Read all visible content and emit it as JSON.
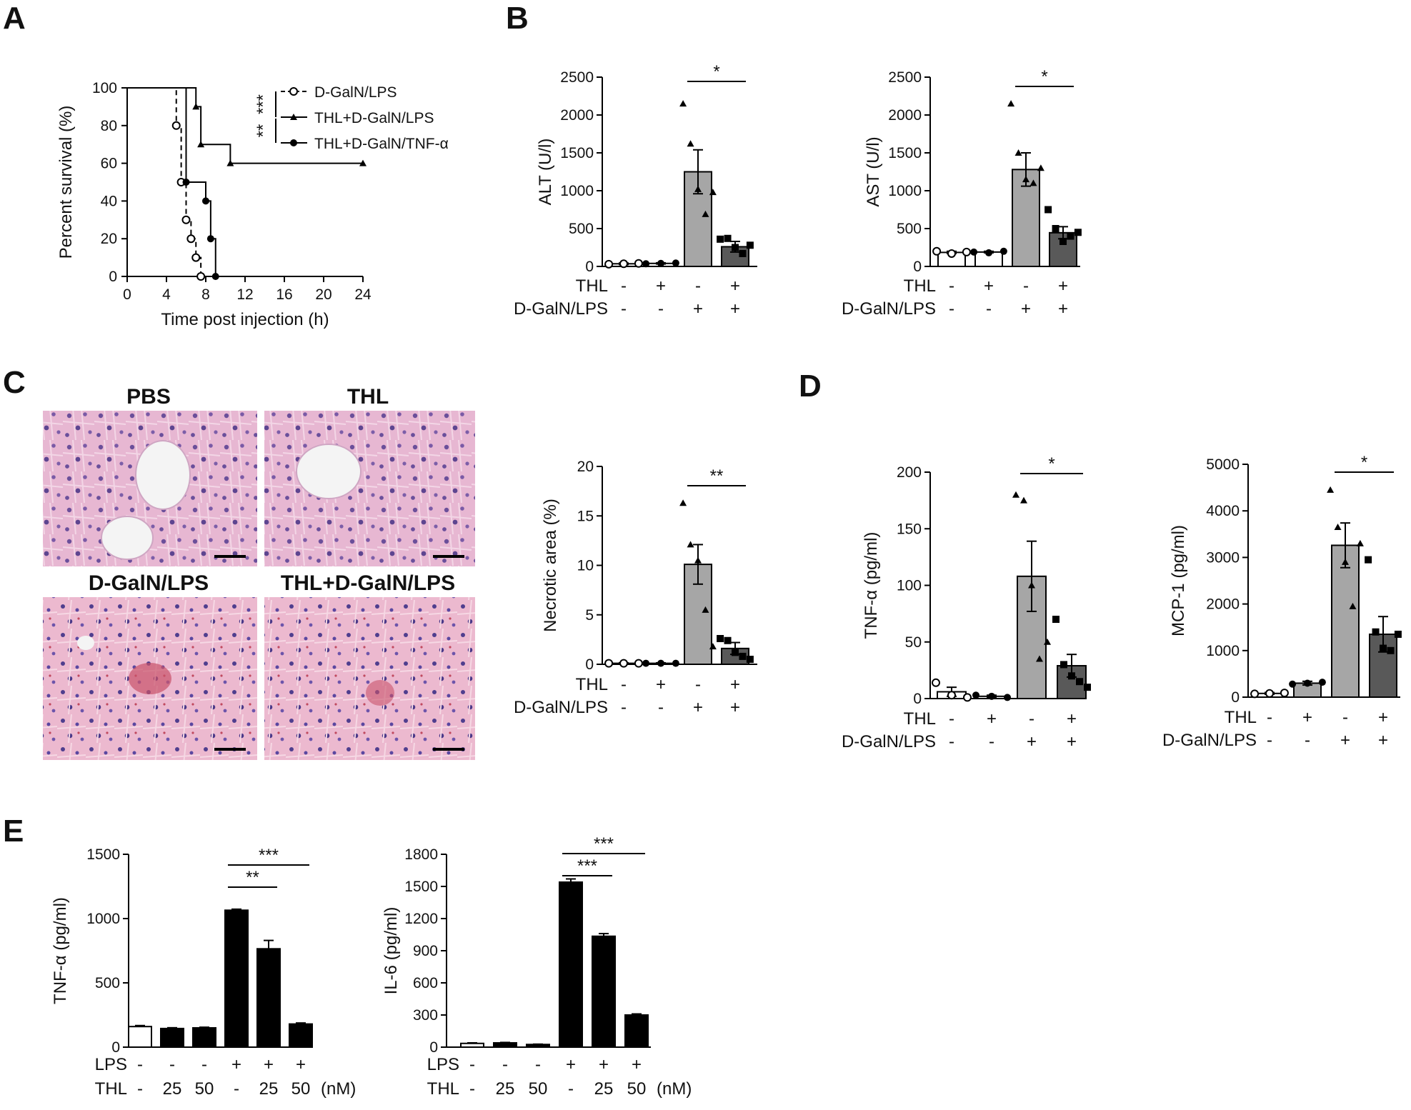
{
  "panels": {
    "A": {
      "letter": "A"
    },
    "B": {
      "letter": "B"
    },
    "C": {
      "letter": "C",
      "histo_titles": [
        "PBS",
        "THL",
        "D-GalN/LPS",
        "THL+D-GalN/LPS"
      ]
    },
    "D": {
      "letter": "D"
    },
    "E": {
      "letter": "E"
    }
  },
  "chart_data": [
    {
      "id": "A",
      "type": "line",
      "xlabel": "Time post injection (h)",
      "ylabel": "Percent survival (%)",
      "xlim": [
        0,
        24
      ],
      "ylim": [
        0,
        100
      ],
      "xticks": [
        0,
        4,
        8,
        12,
        16,
        20,
        24
      ],
      "yticks": [
        0,
        20,
        40,
        60,
        80,
        100
      ],
      "legend_position": "top-right",
      "series": [
        {
          "name": "D-GalN/LPS",
          "style": "dashed",
          "marker": "open-circle",
          "x": [
            0,
            5,
            5.5,
            6,
            6.5,
            7,
            7.5
          ],
          "y": [
            100,
            80,
            50,
            30,
            20,
            10,
            0
          ]
        },
        {
          "name": "THL+D-GalN/LPS",
          "style": "solid",
          "marker": "triangle",
          "x": [
            0,
            7,
            7.5,
            10.5,
            24
          ],
          "y": [
            100,
            90,
            70,
            60,
            60
          ]
        },
        {
          "name": "THL+D-GalN/TNF-α",
          "style": "solid",
          "marker": "filled-circle",
          "x": [
            0,
            6,
            8,
            8.5,
            9
          ],
          "y": [
            100,
            50,
            40,
            20,
            0
          ]
        }
      ],
      "significance": [
        "***",
        "**"
      ]
    },
    {
      "id": "B-ALT",
      "type": "bar",
      "ylabel": "ALT (U/l)",
      "ylim": [
        0,
        2500
      ],
      "yticks": [
        0,
        500,
        1000,
        1500,
        2000,
        2500
      ],
      "conditions": [
        {
          "label": "THL",
          "values": [
            "-",
            "+",
            "-",
            "+"
          ]
        },
        {
          "label": "D-GalN/LPS",
          "values": [
            "-",
            "-",
            "+",
            "+"
          ]
        }
      ],
      "bars": [
        {
          "mean": 35,
          "sem": 10,
          "color": "#ffffff",
          "marker": "open-circle",
          "points": [
            30,
            35,
            40
          ]
        },
        {
          "mean": 40,
          "sem": 8,
          "color": "#ffffff",
          "marker": "filled-circle",
          "points": [
            35,
            40,
            45
          ]
        },
        {
          "mean": 1250,
          "sem": 290,
          "color": "#a6a6a6",
          "marker": "triangle",
          "points": [
            2150,
            1620,
            1020,
            690,
            980
          ]
        },
        {
          "mean": 260,
          "sem": 70,
          "color": "#595959",
          "marker": "square",
          "points": [
            360,
            370,
            250,
            170,
            280
          ]
        }
      ],
      "significance": [
        {
          "from": 2,
          "to": 3,
          "label": "*"
        }
      ]
    },
    {
      "id": "B-AST",
      "type": "bar",
      "ylabel": "AST (U/l)",
      "ylim": [
        0,
        2500
      ],
      "yticks": [
        0,
        500,
        1000,
        1500,
        2000,
        2500
      ],
      "conditions": [
        {
          "label": "THL",
          "values": [
            "-",
            "+",
            "-",
            "+"
          ]
        },
        {
          "label": "D-GalN/LPS",
          "values": [
            "-",
            "-",
            "+",
            "+"
          ]
        }
      ],
      "bars": [
        {
          "mean": 185,
          "sem": 15,
          "color": "#ffffff",
          "marker": "open-circle",
          "points": [
            200,
            170,
            190
          ]
        },
        {
          "mean": 190,
          "sem": 10,
          "color": "#ffffff",
          "marker": "filled-circle",
          "points": [
            190,
            180,
            200
          ]
        },
        {
          "mean": 1280,
          "sem": 220,
          "color": "#a6a6a6",
          "marker": "triangle",
          "points": [
            2150,
            1500,
            1150,
            1100,
            1300
          ]
        },
        {
          "mean": 445,
          "sem": 80,
          "color": "#595959",
          "marker": "square",
          "points": [
            750,
            500,
            330,
            400,
            450
          ]
        }
      ],
      "significance": [
        {
          "from": 2,
          "to": 3,
          "label": "*"
        }
      ]
    },
    {
      "id": "C-necrosis",
      "type": "bar",
      "ylabel": "Necrotic area (%)",
      "ylim": [
        0,
        20
      ],
      "yticks": [
        0,
        5,
        10,
        15,
        20
      ],
      "conditions": [
        {
          "label": "THL",
          "values": [
            "-",
            "+",
            "-",
            "+"
          ]
        },
        {
          "label": "D-GalN/LPS",
          "values": [
            "-",
            "-",
            "+",
            "+"
          ]
        }
      ],
      "bars": [
        {
          "mean": 0.1,
          "sem": 0.05,
          "color": "#ffffff",
          "marker": "open-circle",
          "points": [
            0.1,
            0.1,
            0.1
          ]
        },
        {
          "mean": 0.1,
          "sem": 0.05,
          "color": "#ffffff",
          "marker": "filled-circle",
          "points": [
            0.1,
            0.1,
            0.1
          ]
        },
        {
          "mean": 10.1,
          "sem": 2.0,
          "color": "#a6a6a6",
          "marker": "triangle",
          "points": [
            16.3,
            12.1,
            10.5,
            5.5,
            1.8
          ]
        },
        {
          "mean": 1.6,
          "sem": 0.6,
          "color": "#595959",
          "marker": "square",
          "points": [
            2.6,
            2.4,
            1.2,
            0.8,
            0.5
          ]
        }
      ],
      "significance": [
        {
          "from": 2,
          "to": 3,
          "label": "**"
        }
      ]
    },
    {
      "id": "D-TNF",
      "type": "bar",
      "ylabel": "TNF-α (pg/ml)",
      "ylim": [
        0,
        200
      ],
      "yticks": [
        0,
        50,
        100,
        150,
        200
      ],
      "conditions": [
        {
          "label": "THL",
          "values": [
            "-",
            "+",
            "-",
            "+"
          ]
        },
        {
          "label": "D-GalN/LPS",
          "values": [
            "-",
            "-",
            "+",
            "+"
          ]
        }
      ],
      "bars": [
        {
          "mean": 6,
          "sem": 4,
          "color": "#ffffff",
          "marker": "open-circle",
          "points": [
            14,
            3,
            1
          ]
        },
        {
          "mean": 2,
          "sem": 1,
          "color": "#ffffff",
          "marker": "filled-circle",
          "points": [
            3,
            2,
            1
          ]
        },
        {
          "mean": 108,
          "sem": 31,
          "color": "#a6a6a6",
          "marker": "triangle",
          "points": [
            180,
            175,
            100,
            35,
            50
          ]
        },
        {
          "mean": 29,
          "sem": 10,
          "color": "#595959",
          "marker": "square",
          "points": [
            70,
            30,
            20,
            15,
            10
          ]
        }
      ],
      "significance": [
        {
          "from": 2,
          "to": 3,
          "label": "*"
        }
      ]
    },
    {
      "id": "D-MCP",
      "type": "bar",
      "ylabel": "MCP-1 (pg/ml)",
      "ylim": [
        0,
        5000
      ],
      "yticks": [
        0,
        1000,
        2000,
        3000,
        4000,
        5000
      ],
      "conditions": [
        {
          "label": "THL",
          "values": [
            "-",
            "+",
            "-",
            "+"
          ]
        },
        {
          "label": "D-GalN/LPS",
          "values": [
            "-",
            "-",
            "+",
            "+"
          ]
        }
      ],
      "bars": [
        {
          "mean": 80,
          "sem": 20,
          "color": "#ffffff",
          "marker": "open-circle",
          "points": [
            70,
            80,
            90
          ]
        },
        {
          "mean": 300,
          "sem": 40,
          "color": "#a6a6a6",
          "marker": "filled-circle",
          "points": [
            280,
            300,
            320
          ]
        },
        {
          "mean": 3260,
          "sem": 480,
          "color": "#a6a6a6",
          "marker": "triangle",
          "points": [
            4450,
            3650,
            2900,
            1950,
            3300
          ]
        },
        {
          "mean": 1350,
          "sem": 380,
          "color": "#595959",
          "marker": "square",
          "points": [
            2950,
            1400,
            1050,
            1000,
            1350
          ]
        }
      ],
      "significance": [
        {
          "from": 2,
          "to": 3,
          "label": "*"
        }
      ]
    },
    {
      "id": "E-TNF",
      "type": "bar",
      "ylabel": "TNF-α (pg/ml)",
      "ylim": [
        0,
        1500
      ],
      "yticks": [
        0,
        500,
        1000,
        1500
      ],
      "unit_note": "(nM)",
      "conditions": [
        {
          "label": "LPS",
          "values": [
            "-",
            "-",
            "-",
            "+",
            "+",
            "+"
          ]
        },
        {
          "label": "THL",
          "values": [
            "-",
            "25",
            "50",
            "-",
            "25",
            "50"
          ]
        }
      ],
      "bars": [
        {
          "mean": 160,
          "sem": 8,
          "color": "#ffffff"
        },
        {
          "mean": 145,
          "sem": 6,
          "color": "#000000"
        },
        {
          "mean": 150,
          "sem": 5,
          "color": "#000000"
        },
        {
          "mean": 1065,
          "sem": 8,
          "color": "#000000"
        },
        {
          "mean": 765,
          "sem": 65,
          "color": "#000000"
        },
        {
          "mean": 180,
          "sem": 8,
          "color": "#000000"
        }
      ],
      "significance": [
        {
          "from": 3,
          "to": 5,
          "label": "***"
        },
        {
          "from": 3,
          "to": 4,
          "label": "**"
        }
      ]
    },
    {
      "id": "E-IL6",
      "type": "bar",
      "ylabel": "IL-6 (pg/ml)",
      "ylim": [
        0,
        1800
      ],
      "yticks": [
        0,
        300,
        600,
        900,
        1200,
        1500,
        1800
      ],
      "unit_note": "(nM)",
      "conditions": [
        {
          "label": "LPS",
          "values": [
            "-",
            "-",
            "-",
            "+",
            "+",
            "+"
          ]
        },
        {
          "label": "THL",
          "values": [
            "-",
            "25",
            "50",
            "-",
            "25",
            "50"
          ]
        }
      ],
      "bars": [
        {
          "mean": 35,
          "sem": 5,
          "color": "#ffffff"
        },
        {
          "mean": 40,
          "sem": 4,
          "color": "#000000"
        },
        {
          "mean": 25,
          "sem": 3,
          "color": "#000000"
        },
        {
          "mean": 1540,
          "sem": 30,
          "color": "#000000"
        },
        {
          "mean": 1035,
          "sem": 25,
          "color": "#000000"
        },
        {
          "mean": 300,
          "sem": 10,
          "color": "#000000"
        }
      ],
      "significance": [
        {
          "from": 3,
          "to": 5,
          "label": "***"
        },
        {
          "from": 3,
          "to": 4,
          "label": "***"
        }
      ]
    }
  ]
}
